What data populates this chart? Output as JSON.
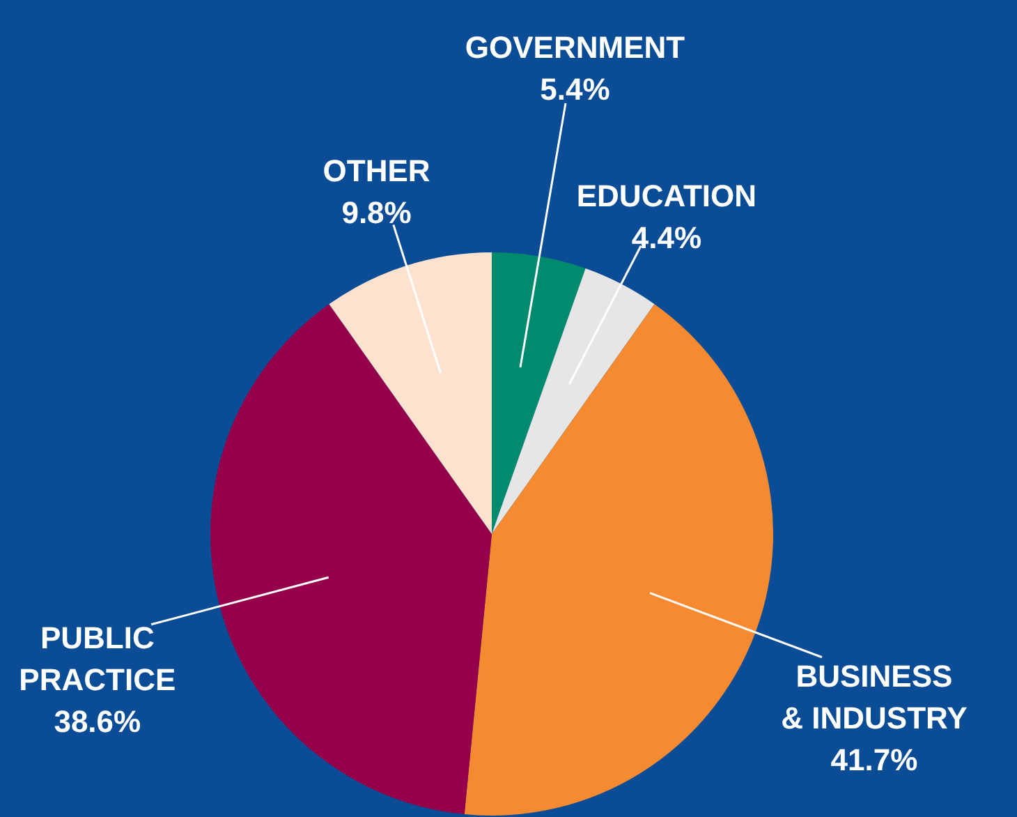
{
  "chart_data": {
    "type": "pie",
    "categories": [
      "GOVERNMENT",
      "EDUCATION",
      "BUSINESS & INDUSTRY",
      "PUBLIC PRACTICE",
      "OTHER"
    ],
    "values": [
      5.4,
      4.4,
      41.7,
      38.6,
      9.8
    ],
    "value_labels": [
      "5.4%",
      "4.4%",
      "41.7%",
      "38.6%",
      "9.8%"
    ],
    "colors": [
      "#008b6e",
      "#e6e6e6",
      "#f58a31",
      "#96004b",
      "#fde3cf"
    ]
  }
}
